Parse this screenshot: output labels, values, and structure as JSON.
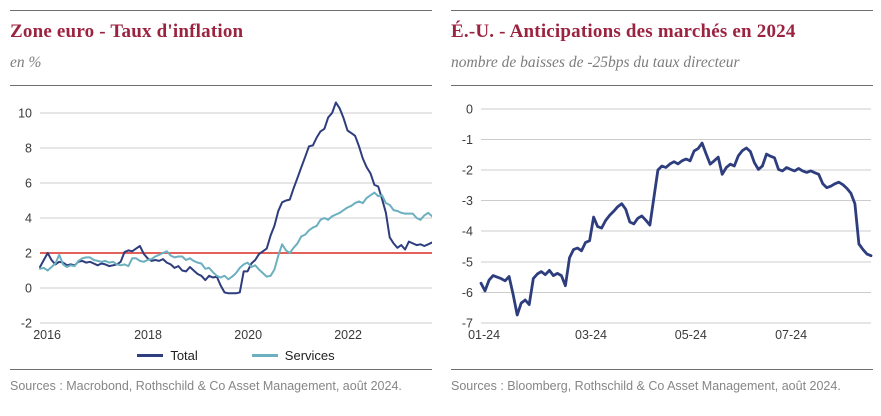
{
  "style": {
    "grid_color": "#cccccc",
    "tick_color": "#3a3a3a",
    "title_color": "#9c2340",
    "navy": "#2e3d7d",
    "teal": "#6cb0bf",
    "red": "#e04a42"
  },
  "chart_data": [
    {
      "type": "line",
      "title": "Zone euro - Taux d'inflation",
      "subtitle": "en %",
      "source": "Sources : Macrobond, Rothschild & Co Asset Management, août 2024.",
      "x_range": [
        "2016",
        "2024 (août)"
      ],
      "ylim": [
        -2,
        10.8
      ],
      "yticks": [
        10,
        8,
        6,
        4,
        2,
        0,
        -2
      ],
      "grid": true,
      "legend_position": "bottom",
      "x_ticks": {
        "labels": [
          "2016",
          "2018",
          "2020",
          "2022"
        ],
        "fractions": [
          0.018,
          0.2755,
          0.531,
          0.786
        ]
      },
      "reference_line": {
        "value": 2.0,
        "color": "#e04a42"
      },
      "series": [
        {
          "name": "Total",
          "color": "#2e3d7d",
          "values": [
            1.2,
            1.6,
            2.0,
            1.6,
            1.35,
            1.5,
            1.45,
            1.3,
            1.35,
            1.3,
            1.5,
            1.55,
            1.45,
            1.5,
            1.4,
            1.3,
            1.4,
            1.35,
            1.25,
            1.3,
            1.35,
            1.5,
            2.05,
            2.15,
            2.1,
            2.25,
            2.4,
            1.95,
            1.7,
            1.55,
            1.6,
            1.55,
            1.65,
            1.45,
            1.35,
            1.15,
            1.25,
            1.0,
            0.95,
            1.2,
            1.0,
            0.8,
            0.7,
            0.45,
            0.7,
            0.6,
            0.65,
            0.15,
            -0.25,
            -0.3,
            -0.3,
            -0.3,
            -0.25,
            0.95,
            0.95,
            1.4,
            1.6,
            1.95,
            2.1,
            2.25,
            3.0,
            3.55,
            4.4,
            4.9,
            5.0,
            5.05,
            5.7,
            6.3,
            6.9,
            7.5,
            8.1,
            8.15,
            8.6,
            8.95,
            9.1,
            9.75,
            10.0,
            10.6,
            10.25,
            9.7,
            9.0,
            8.85,
            8.7,
            8.1,
            7.4,
            6.9,
            6.55,
            5.9,
            5.8,
            5.1,
            4.3,
            2.9,
            2.55,
            2.3,
            2.45,
            2.2,
            2.65,
            2.55,
            2.45,
            2.5,
            2.4,
            2.5,
            2.6
          ]
        },
        {
          "name": "Services",
          "color": "#6cb0bf",
          "values": [
            1.1,
            1.15,
            1.0,
            1.2,
            1.4,
            1.9,
            1.35,
            1.2,
            1.3,
            1.25,
            1.55,
            1.7,
            1.75,
            1.75,
            1.6,
            1.55,
            1.5,
            1.55,
            1.45,
            1.5,
            1.35,
            1.3,
            1.35,
            1.25,
            1.7,
            1.7,
            1.55,
            1.5,
            1.6,
            1.65,
            1.8,
            1.9,
            2.0,
            2.1,
            1.85,
            1.75,
            1.8,
            1.8,
            1.6,
            1.7,
            1.55,
            1.45,
            1.4,
            1.1,
            1.15,
            0.9,
            0.7,
            0.6,
            0.7,
            0.5,
            0.65,
            0.85,
            1.15,
            1.35,
            1.45,
            1.2,
            1.3,
            1.05,
            0.85,
            0.65,
            0.7,
            1.05,
            1.85,
            2.5,
            2.15,
            2.0,
            2.3,
            2.55,
            2.95,
            3.05,
            3.3,
            3.45,
            3.55,
            3.9,
            4.0,
            3.9,
            4.1,
            4.2,
            4.3,
            4.45,
            4.6,
            4.7,
            4.85,
            4.95,
            4.85,
            5.15,
            5.3,
            5.45,
            5.25,
            5.3,
            4.85,
            4.75,
            4.45,
            4.4,
            4.3,
            4.25,
            4.25,
            4.25,
            4.0,
            3.9,
            4.15,
            4.3,
            4.1
          ]
        }
      ]
    },
    {
      "type": "line",
      "title": "É.-U. - Anticipations des marchés en 2024",
      "subtitle": "nombre de baisses de -25bps du taux directeur",
      "source": "Sources : Bloomberg, Rothschild & Co Asset Management, août 2024.",
      "x_range": [
        "01-24",
        "08-24"
      ],
      "ylim": [
        -7,
        0.32
      ],
      "yticks": [
        0,
        -1,
        -2,
        -3,
        -4,
        -5,
        -6,
        -7
      ],
      "grid": true,
      "legend_position": "none",
      "x_ticks": {
        "labels": [
          "01-24",
          "03-24",
          "05-24",
          "07-24"
        ],
        "fractions": [
          0.008,
          0.282,
          0.538,
          0.795
        ]
      },
      "series": [
        {
          "name": "",
          "color": "#2e3d7d",
          "values": [
            -5.7,
            -5.95,
            -5.6,
            -5.45,
            -5.5,
            -5.55,
            -5.62,
            -5.48,
            -6.08,
            -6.74,
            -6.35,
            -6.25,
            -6.4,
            -5.55,
            -5.4,
            -5.32,
            -5.42,
            -5.28,
            -5.45,
            -5.38,
            -5.45,
            -5.78,
            -4.87,
            -4.6,
            -4.55,
            -4.64,
            -4.37,
            -4.31,
            -3.54,
            -3.85,
            -3.9,
            -3.65,
            -3.48,
            -3.35,
            -3.2,
            -3.1,
            -3.28,
            -3.7,
            -3.76,
            -3.58,
            -3.5,
            -3.64,
            -3.8,
            -2.9,
            -2.0,
            -1.87,
            -1.92,
            -1.8,
            -1.73,
            -1.8,
            -1.7,
            -1.64,
            -1.7,
            -1.38,
            -1.3,
            -1.12,
            -1.48,
            -1.81,
            -1.7,
            -1.58,
            -2.14,
            -1.92,
            -1.81,
            -1.87,
            -1.54,
            -1.37,
            -1.28,
            -1.4,
            -1.76,
            -1.98,
            -1.87,
            -1.48,
            -1.55,
            -1.6,
            -1.98,
            -2.03,
            -1.92,
            -1.98,
            -2.03,
            -1.95,
            -2.03,
            -2.08,
            -2.03,
            -2.09,
            -2.14,
            -2.45,
            -2.58,
            -2.53,
            -2.45,
            -2.4,
            -2.48,
            -2.6,
            -2.76,
            -3.1,
            -4.42,
            -4.6,
            -4.75,
            -4.8
          ]
        }
      ]
    }
  ]
}
